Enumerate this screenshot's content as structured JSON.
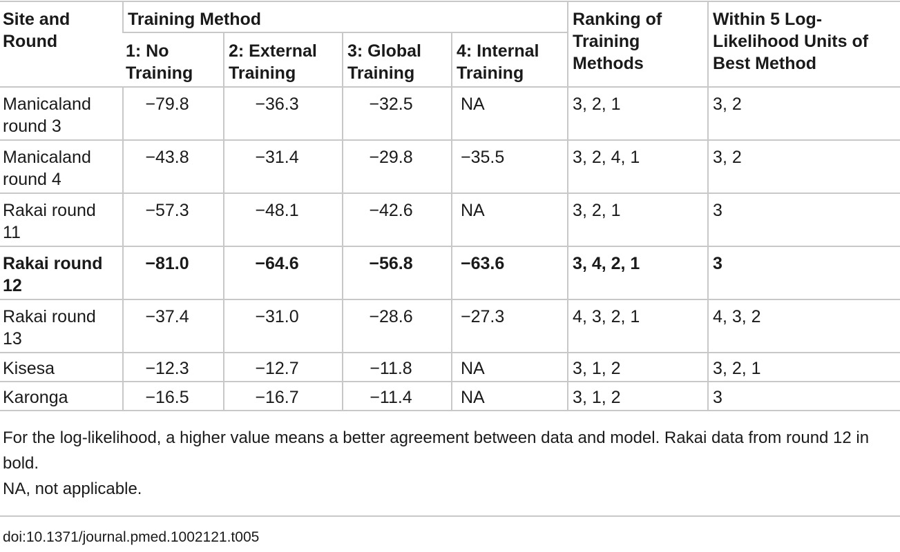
{
  "header": {
    "site_and_round": "Site and Round",
    "training_method": "Training Method",
    "ranking": "Ranking of Training Methods",
    "within_5": "Within 5 Log-Likelihood Units of Best Method",
    "methods": [
      "1: No Training",
      "2: External Training",
      "3: Global Training",
      "4: Internal Training"
    ]
  },
  "rows": [
    {
      "site": "Manicaland round 3",
      "v1": "−79.8",
      "v2": "−36.3",
      "v3": "−32.5",
      "v4": "NA",
      "ranking": "3, 2, 1",
      "within": "3, 2"
    },
    {
      "site": "Manicaland round 4",
      "v1": "−43.8",
      "v2": "−31.4",
      "v3": "−29.8",
      "v4": "−35.5",
      "ranking": "3, 2, 4, 1",
      "within": "3, 2"
    },
    {
      "site": "Rakai round 11",
      "v1": "−57.3",
      "v2": "−48.1",
      "v3": "−42.6",
      "v4": "NA",
      "ranking": "3, 2, 1",
      "within": "3"
    },
    {
      "site": "Rakai round 12",
      "v1": "−81.0",
      "v2": "−64.6",
      "v3": "−56.8",
      "v4": "−63.6",
      "ranking": "3, 4, 2, 1",
      "within": "3"
    },
    {
      "site": "Rakai round 13",
      "v1": "−37.4",
      "v2": "−31.0",
      "v3": "−28.6",
      "v4": "−27.3",
      "ranking": "4, 3, 2, 1",
      "within": "4, 3, 2"
    },
    {
      "site": "Kisesa",
      "v1": "−12.3",
      "v2": "−12.7",
      "v3": "−11.8",
      "v4": "NA",
      "ranking": "3, 1, 2",
      "within": "3, 2, 1"
    },
    {
      "site": "Karonga",
      "v1": "−16.5",
      "v2": "−16.7",
      "v3": "−11.4",
      "v4": "NA",
      "ranking": "3, 1, 2",
      "within": "3"
    }
  ],
  "footnotes": {
    "note1": "For the log-likelihood, a higher value means a better agreement between data and model. Rakai data from round 12 in bold.",
    "note2": "NA, not applicable."
  },
  "doi": "doi:10.1371/journal.pmed.1002121.t005"
}
